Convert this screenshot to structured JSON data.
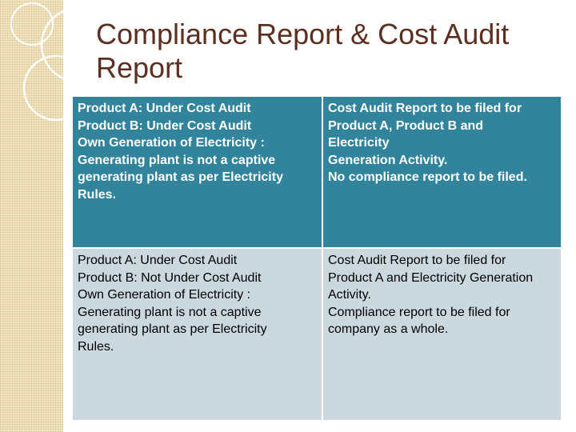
{
  "slide": {
    "title_line1": "Compliance Report & Cost Audit",
    "title_line2": "Report"
  },
  "table": {
    "rows": [
      {
        "left": [
          "Product A: Under Cost Audit",
          "Product B: Under Cost Audit",
          "Own Generation  of Electricity :",
          "Generating plant is not a captive",
          "generating plant as per Electricity",
          "Rules."
        ],
        "right": [
          "Cost Audit Report to be filed for",
          "Product A, Product B and",
          "Electricity",
          "Generation Activity.",
          "No compliance report to be filed."
        ]
      },
      {
        "left": [
          "Product A: Under Cost Audit",
          "Product B: Not Under Cost Audit",
          "Own Generation  of Electricity :",
          "Generating plant is not a captive",
          "generating plant as per Electricity",
          "Rules."
        ],
        "right": [
          "Cost Audit Report to be filed for",
          "Product A and Electricity Generation",
          "Activity.",
          "Compliance report to be filed for",
          "company as a whole."
        ]
      }
    ]
  }
}
